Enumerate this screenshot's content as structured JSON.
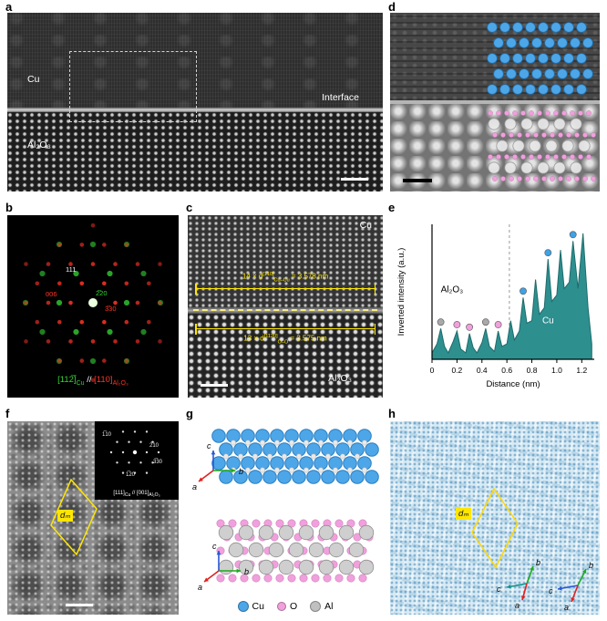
{
  "colors": {
    "cu_blue": "#4da6e8",
    "o_pink": "#f0a0dc",
    "al_gray": "#c0c0c0",
    "diffraction_green": "#35d435",
    "diffraction_red": "#ff3427",
    "annotation_yellow": "#ffe600",
    "profile_teal": "#2e8f8f",
    "marker_gray": "#a9a9a9",
    "marker_pink": "#f0a0dc",
    "marker_blue": "#3ea2e5"
  },
  "panels": {
    "a": {
      "label": "a",
      "cu_label": "Cu",
      "al2o3_label": "Al₂O₃",
      "interface_label": "Interface"
    },
    "b": {
      "label": "b",
      "spot_labels": [
        {
          "text": "111",
          "color": "#ffffff"
        },
        {
          "text": "006",
          "color": "#ff3427"
        },
        {
          "text": "2̅20",
          "color": "#35d435"
        },
        {
          "text": "3̅30",
          "color": "#ff3427"
        }
      ],
      "caption": {
        "cu_vector": "[112̅]",
        "cu_sub": "Cu",
        "separator": " // ",
        "al_vector": "[110]",
        "al_sub": "Al₂O₃"
      }
    },
    "c": {
      "label": "c",
      "cu_label": "Cu",
      "al2o3_label": "Al₂O₃",
      "measure_top": {
        "prefix": "14 × d",
        "sup": "[1̅10]",
        "sub": "Cu–Cu",
        "suffix": " = 3.578 nm"
      },
      "measure_bottom": {
        "prefix": "13 × d",
        "sup": "[112̅0]",
        "sub": "O–O",
        "suffix": " = 3.575 nm"
      }
    },
    "d": {
      "label": "d"
    },
    "e": {
      "label": "e"
    },
    "f": {
      "label": "f",
      "moire_label": "dₘ",
      "inset": {
        "spots": [
          "1̅10",
          "2̅10",
          "3̅30",
          "1̅20"
        ],
        "caption_cu": "[111]",
        "caption_cu_sub": "Cu",
        "caption_sep": " // ",
        "caption_al": "[001]",
        "caption_al_sub": "Al₂O₃"
      }
    },
    "g": {
      "label": "g",
      "axes_top": {
        "a": "a",
        "b": "b",
        "c": "c"
      },
      "axes_bottom": {
        "a": "a",
        "b": "b",
        "c": "c"
      },
      "legend": [
        {
          "name": "Cu",
          "color": "#4da6e8"
        },
        {
          "name": "O",
          "color": "#f0a0dc"
        },
        {
          "name": "Al",
          "color": "#c0c0c0"
        }
      ]
    },
    "h": {
      "label": "h",
      "moire_label": "dₘ",
      "axes_left": {
        "a": "a",
        "b": "b",
        "c": "c"
      },
      "axes_right": {
        "a": "a",
        "b": "b",
        "c": "c"
      }
    }
  },
  "chart_data": {
    "type": "area",
    "title": "",
    "xlabel": "Distance (nm)",
    "ylabel": "Inverted intensity (a.u.)",
    "xlim": [
      0,
      1.3
    ],
    "ylim": [
      0,
      1.05
    ],
    "xtick_values": [
      0,
      0.2,
      0.4,
      0.6,
      0.8,
      1.0,
      1.2
    ],
    "xtick_labels": [
      "0",
      "0.2",
      "0.4",
      "0.6",
      "0.8",
      "1.0",
      "1.2"
    ],
    "interface_x": 0.62,
    "grid": false,
    "legend_position": "none",
    "region_labels": [
      {
        "text": "Al₂O₃",
        "x": 0.16,
        "y": 0.52,
        "color": "#000000"
      },
      {
        "text": "Cu",
        "x": 0.93,
        "y": 0.28,
        "color": "#ffffff"
      }
    ],
    "series": [
      {
        "name": "Inverted intensity",
        "points": [
          [
            0,
            0.05
          ],
          [
            0.04,
            0.12
          ],
          [
            0.07,
            0.24
          ],
          [
            0.1,
            0.1
          ],
          [
            0.13,
            0.05
          ],
          [
            0.17,
            0.14
          ],
          [
            0.2,
            0.22
          ],
          [
            0.23,
            0.08
          ],
          [
            0.27,
            0.05
          ],
          [
            0.3,
            0.2
          ],
          [
            0.33,
            0.09
          ],
          [
            0.36,
            0.05
          ],
          [
            0.4,
            0.13
          ],
          [
            0.43,
            0.24
          ],
          [
            0.46,
            0.1
          ],
          [
            0.5,
            0.06
          ],
          [
            0.53,
            0.22
          ],
          [
            0.56,
            0.1
          ],
          [
            0.6,
            0.12
          ],
          [
            0.63,
            0.3
          ],
          [
            0.66,
            0.15
          ],
          [
            0.7,
            0.22
          ],
          [
            0.73,
            0.48
          ],
          [
            0.76,
            0.28
          ],
          [
            0.8,
            0.3
          ],
          [
            0.83,
            0.62
          ],
          [
            0.86,
            0.35
          ],
          [
            0.9,
            0.4
          ],
          [
            0.93,
            0.78
          ],
          [
            0.96,
            0.45
          ],
          [
            1.0,
            0.5
          ],
          [
            1.03,
            0.85
          ],
          [
            1.06,
            0.55
          ],
          [
            1.1,
            0.6
          ],
          [
            1.13,
            0.92
          ],
          [
            1.17,
            0.55
          ],
          [
            1.21,
            0.98
          ],
          [
            1.25,
            0.4
          ],
          [
            1.28,
            0.12
          ]
        ]
      }
    ],
    "markers": [
      {
        "x": 0.07,
        "y": 0.24,
        "color_key": "marker_gray"
      },
      {
        "x": 0.2,
        "y": 0.22,
        "color_key": "marker_pink"
      },
      {
        "x": 0.3,
        "y": 0.2,
        "color_key": "marker_pink"
      },
      {
        "x": 0.43,
        "y": 0.24,
        "color_key": "marker_gray"
      },
      {
        "x": 0.53,
        "y": 0.22,
        "color_key": "marker_pink"
      },
      {
        "x": 0.73,
        "y": 0.48,
        "color_key": "marker_blue"
      },
      {
        "x": 0.93,
        "y": 0.78,
        "color_key": "marker_blue"
      },
      {
        "x": 1.13,
        "y": 0.92,
        "color_key": "marker_blue"
      }
    ]
  }
}
